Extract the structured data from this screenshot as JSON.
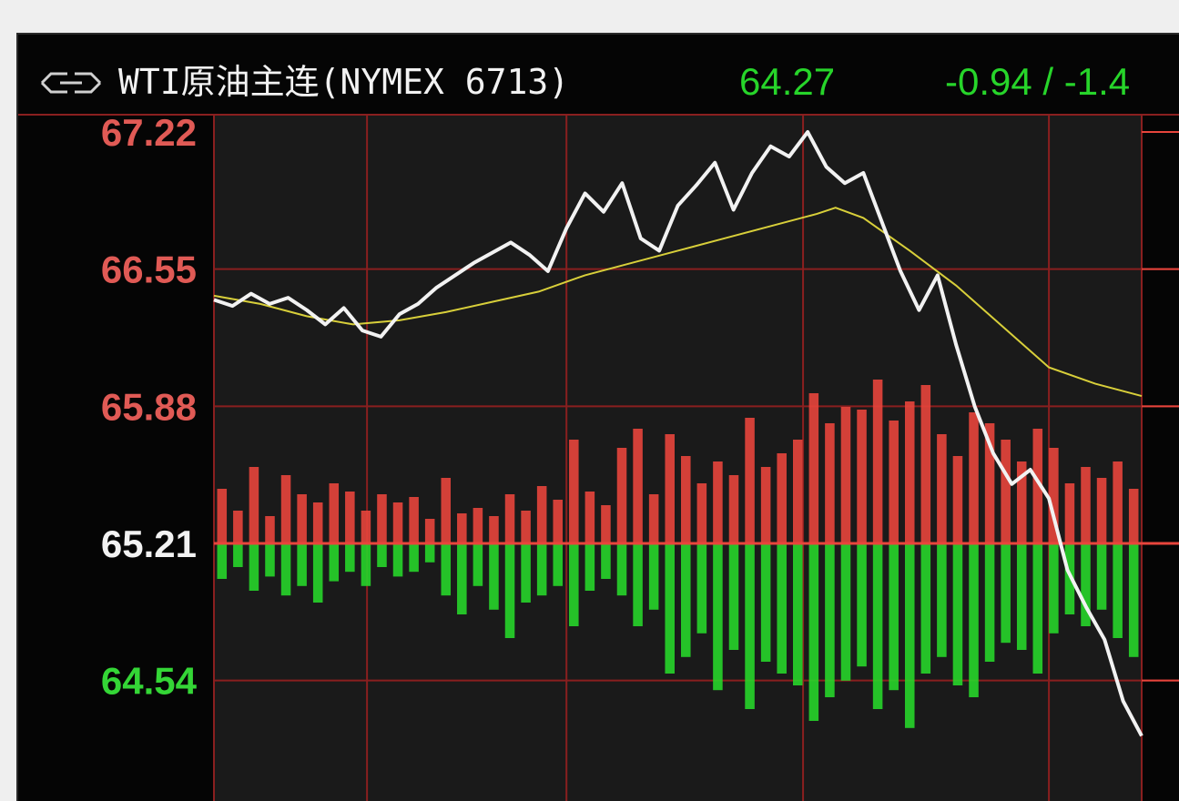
{
  "header": {
    "title": "WTI原油主连(NYMEX 6713)",
    "last_price": "64.27",
    "change": "-0.94 / -1.4",
    "icon": "link-icon"
  },
  "colors": {
    "background": "#050505",
    "plot_bg": "#1a1a1a",
    "grid": "#8a1f1f",
    "up": "#e8453c",
    "down": "#27d52a",
    "price_line": "#f2f2f2",
    "avg_line": "#d8cf3a",
    "up_label": "#e05a55",
    "down_label": "#34d636",
    "ref_label": "#f2f2f2"
  },
  "chart_data": {
    "type": "line",
    "y_ticks": [
      {
        "label": "67.22",
        "value": 67.22,
        "color": "up"
      },
      {
        "label": "66.55",
        "value": 66.55,
        "color": "up"
      },
      {
        "label": "65.88",
        "value": 65.88,
        "color": "up"
      },
      {
        "label": "65.21",
        "value": 65.21,
        "color": "ref"
      },
      {
        "label": "64.54",
        "value": 64.54,
        "color": "down"
      }
    ],
    "ylim": [
      63.97,
      67.22
    ],
    "reference_price": 65.21,
    "x_grid_fractions": [
      0.165,
      0.38,
      0.635,
      0.9
    ],
    "series": [
      {
        "type": "line",
        "points": [
          [
            0.0,
            66.4
          ],
          [
            0.02,
            66.37
          ],
          [
            0.04,
            66.43
          ],
          [
            0.06,
            66.38
          ],
          [
            0.08,
            66.41
          ],
          [
            0.1,
            66.35
          ],
          [
            0.12,
            66.28
          ],
          [
            0.14,
            66.36
          ],
          [
            0.16,
            66.25
          ],
          [
            0.18,
            66.22
          ],
          [
            0.2,
            66.33
          ],
          [
            0.22,
            66.38
          ],
          [
            0.24,
            66.46
          ],
          [
            0.26,
            66.52
          ],
          [
            0.28,
            66.58
          ],
          [
            0.3,
            66.63
          ],
          [
            0.32,
            66.68
          ],
          [
            0.34,
            66.62
          ],
          [
            0.36,
            66.54
          ],
          [
            0.38,
            66.75
          ],
          [
            0.4,
            66.92
          ],
          [
            0.42,
            66.83
          ],
          [
            0.44,
            66.97
          ],
          [
            0.46,
            66.7
          ],
          [
            0.48,
            66.64
          ],
          [
            0.5,
            66.86
          ],
          [
            0.52,
            66.96
          ],
          [
            0.54,
            67.07
          ],
          [
            0.56,
            66.84
          ],
          [
            0.58,
            67.02
          ],
          [
            0.6,
            67.15
          ],
          [
            0.62,
            67.1
          ],
          [
            0.64,
            67.22
          ],
          [
            0.66,
            67.05
          ],
          [
            0.68,
            66.97
          ],
          [
            0.7,
            67.02
          ],
          [
            0.72,
            66.78
          ],
          [
            0.74,
            66.54
          ],
          [
            0.76,
            66.35
          ],
          [
            0.78,
            66.52
          ],
          [
            0.8,
            66.18
          ],
          [
            0.82,
            65.88
          ],
          [
            0.84,
            65.65
          ],
          [
            0.86,
            65.5
          ],
          [
            0.88,
            65.57
          ],
          [
            0.9,
            65.43
          ],
          [
            0.92,
            65.08
          ],
          [
            0.94,
            64.9
          ],
          [
            0.96,
            64.74
          ],
          [
            0.98,
            64.44
          ],
          [
            1.0,
            64.27
          ]
        ]
      },
      {
        "type": "line",
        "points": [
          [
            0.0,
            66.42
          ],
          [
            0.05,
            66.38
          ],
          [
            0.1,
            66.32
          ],
          [
            0.15,
            66.28
          ],
          [
            0.2,
            66.3
          ],
          [
            0.25,
            66.34
          ],
          [
            0.3,
            66.39
          ],
          [
            0.35,
            66.44
          ],
          [
            0.4,
            66.52
          ],
          [
            0.45,
            66.58
          ],
          [
            0.5,
            66.64
          ],
          [
            0.55,
            66.7
          ],
          [
            0.6,
            66.76
          ],
          [
            0.65,
            66.82
          ],
          [
            0.67,
            66.85
          ],
          [
            0.7,
            66.8
          ],
          [
            0.75,
            66.64
          ],
          [
            0.8,
            66.47
          ],
          [
            0.85,
            66.27
          ],
          [
            0.9,
            66.07
          ],
          [
            0.95,
            65.99
          ],
          [
            1.0,
            65.93
          ]
        ]
      },
      {
        "type": "bar",
        "up_heights": [
          0.2,
          0.12,
          0.28,
          0.1,
          0.25,
          0.18,
          0.15,
          0.22,
          0.19,
          0.12,
          0.18,
          0.15,
          0.17,
          0.09,
          0.24,
          0.11,
          0.13,
          0.1,
          0.18,
          0.12,
          0.21,
          0.16,
          0.38,
          0.19,
          0.14,
          0.35,
          0.42,
          0.18,
          0.4,
          0.32,
          0.22,
          0.3,
          0.25,
          0.46,
          0.28,
          0.33,
          0.38,
          0.55,
          0.44,
          0.5,
          0.49,
          0.6,
          0.45,
          0.52,
          0.58,
          0.4,
          0.32,
          0.48,
          0.44,
          0.38,
          0.3,
          0.42,
          0.35,
          0.22,
          0.28,
          0.24,
          0.3,
          0.2
        ],
        "down_heights": [
          0.15,
          0.1,
          0.2,
          0.14,
          0.22,
          0.18,
          0.25,
          0.16,
          0.12,
          0.18,
          0.1,
          0.14,
          0.12,
          0.08,
          0.22,
          0.3,
          0.18,
          0.28,
          0.4,
          0.25,
          0.22,
          0.18,
          0.35,
          0.2,
          0.15,
          0.22,
          0.35,
          0.28,
          0.55,
          0.48,
          0.38,
          0.62,
          0.45,
          0.7,
          0.5,
          0.55,
          0.6,
          0.75,
          0.65,
          0.58,
          0.52,
          0.7,
          0.62,
          0.78,
          0.55,
          0.48,
          0.6,
          0.65,
          0.5,
          0.42,
          0.45,
          0.55,
          0.38,
          0.3,
          0.35,
          0.28,
          0.4,
          0.48
        ]
      }
    ]
  }
}
